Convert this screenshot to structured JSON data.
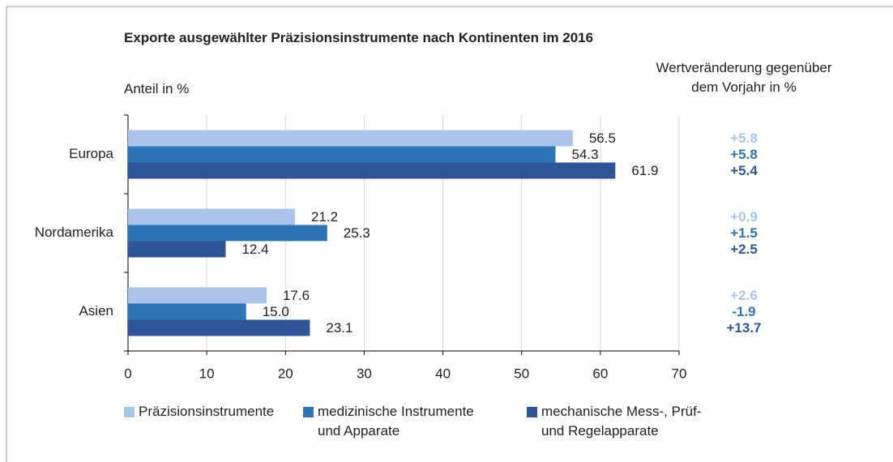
{
  "chart_data": {
    "type": "bar",
    "orientation": "horizontal",
    "title": "Exporte ausgewählter Präzisionsinstrumente nach Kontinenten im 2016",
    "xlabel": "Anteil in %",
    "change_title": "Wertveränderung gegenüber dem Vorjahr in %",
    "categories": [
      "Europa",
      "Nordamerika",
      "Asien"
    ],
    "series": [
      {
        "name": "Präzisionsinstrumente",
        "color": "#a9c4e8",
        "values": [
          56.5,
          21.2,
          17.6
        ],
        "value_labels": [
          "56.5",
          "21.2",
          "17.6"
        ],
        "changes": [
          "+5.8",
          "+0.9",
          "+2.6"
        ]
      },
      {
        "name": "medizinische Instrumente und Apparate",
        "color": "#2e75b6",
        "values": [
          54.3,
          25.3,
          15.0
        ],
        "value_labels": [
          "54.3",
          "25.3",
          "15.0"
        ],
        "changes": [
          "+5.8",
          "+1.5",
          "-1.9"
        ]
      },
      {
        "name": "mechanische Mess-, Prüf- und Regelapparate",
        "color": "#2f5597",
        "values": [
          61.9,
          12.4,
          23.1
        ],
        "value_labels": [
          "61.9",
          "12.4",
          "23.1"
        ],
        "changes": [
          "+5.4",
          "+2.5",
          "+13.7"
        ]
      }
    ],
    "xlim": [
      0,
      70
    ],
    "xticks": [
      0,
      10,
      20,
      30,
      40,
      50,
      60,
      70
    ],
    "grid": true
  }
}
